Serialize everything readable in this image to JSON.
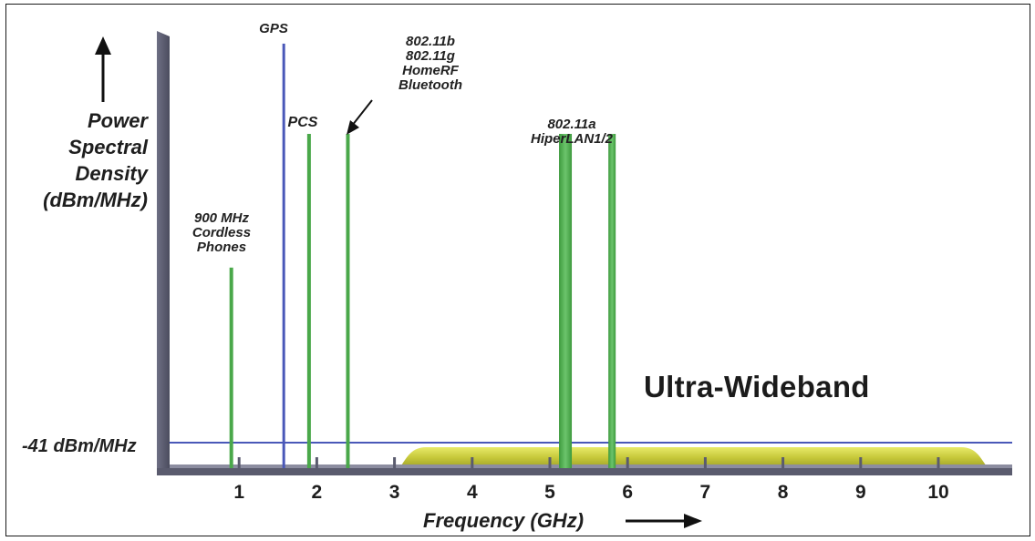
{
  "y_axis": {
    "title_lines": [
      "Power",
      "Spectral",
      "Density",
      "(dBm/MHz)"
    ]
  },
  "x_axis": {
    "title": "Frequency (GHz)",
    "ticks": [
      "1",
      "2",
      "3",
      "4",
      "5",
      "6",
      "7",
      "8",
      "9",
      "10"
    ]
  },
  "threshold": {
    "label": "-41 dBm/MHz"
  },
  "uwb": {
    "label": "Ultra-Wideband",
    "start_ghz": 3.1,
    "end_ghz": 10.6
  },
  "signals": [
    {
      "id": "cordless",
      "freq_ghz": 0.9,
      "level": 0.6,
      "color": "#4aa84a",
      "label_lines": [
        "900 MHz",
        "Cordless",
        "Phones"
      ]
    },
    {
      "id": "gps",
      "freq_ghz": 1.575,
      "level": 1.27,
      "color": "#4a58b8",
      "label_lines": [
        "GPS"
      ]
    },
    {
      "id": "pcs",
      "freq_ghz": 1.9,
      "level": 1.0,
      "color": "#4aa84a",
      "label_lines": [
        "PCS"
      ]
    },
    {
      "id": "ism24",
      "freq_ghz": 2.4,
      "level": 1.0,
      "color": "#4aa84a",
      "label_lines": [
        "802.11b",
        "802.11g",
        "HomeRF",
        "Bluetooth"
      ]
    },
    {
      "id": "unii-low",
      "freq_ghz": 5.2,
      "level": 1.0,
      "color": "#4aa84a",
      "label_lines": [
        "802.11a",
        "HiperLAN1/2"
      ]
    },
    {
      "id": "unii-high",
      "freq_ghz": 5.8,
      "level": 1.0,
      "color": "#4aa84a",
      "label_lines": []
    }
  ],
  "colors": {
    "axis": "#5a5b6e",
    "green": "#4aa84a",
    "blue": "#4a58b8",
    "uwb_fill": "#c9cc3c"
  }
}
